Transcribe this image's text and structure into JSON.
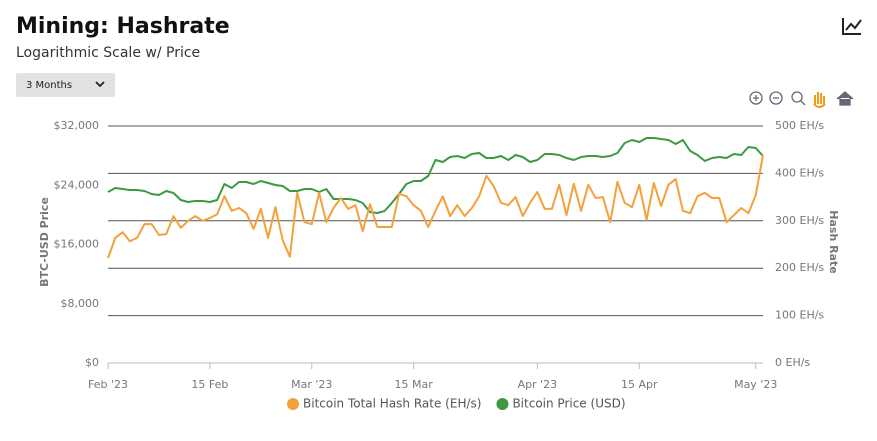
{
  "chart_data": {
    "type": "line",
    "title": "Mining: Hashrate",
    "subtitle": "Logarithmic Scale w/ Price",
    "range_selector": "3 Months",
    "y_label": "BTC-USD Price",
    "y2_label": "Hash Rate",
    "x": [
      0,
      1,
      2,
      3,
      4,
      5,
      6,
      7,
      8,
      9,
      10,
      11,
      12,
      13,
      14,
      15,
      16,
      17,
      18,
      19,
      20,
      21,
      22,
      23,
      24,
      25,
      26,
      27,
      28,
      29,
      30,
      31,
      32,
      33,
      34,
      35,
      36,
      37,
      38,
      39,
      40,
      41,
      42,
      43,
      44,
      45,
      46,
      47,
      48,
      49,
      50,
      51,
      52,
      53,
      54,
      55,
      56,
      57,
      58,
      59,
      60,
      61,
      62,
      63,
      64,
      65,
      66,
      67,
      68,
      69,
      70,
      71,
      72,
      73,
      74,
      75,
      76,
      77,
      78,
      79,
      80,
      81,
      82,
      83,
      84,
      85,
      86,
      87,
      88,
      89,
      90
    ],
    "xlim": [
      0,
      90
    ],
    "xticks": [
      {
        "value": 0,
        "label": "Feb '23"
      },
      {
        "value": 14,
        "label": "15 Feb"
      },
      {
        "value": 28,
        "label": "Mar '23"
      },
      {
        "value": 42,
        "label": "15 Mar"
      },
      {
        "value": 59,
        "label": "Apr '23"
      },
      {
        "value": 73,
        "label": "15 Apr"
      },
      {
        "value": 89,
        "label": "May '23"
      }
    ],
    "ylim": [
      0,
      32000
    ],
    "yticks": [
      {
        "value": 0,
        "label": "$0"
      },
      {
        "value": 8000,
        "label": "$8,000"
      },
      {
        "value": 16000,
        "label": "$16,000"
      },
      {
        "value": 24000,
        "label": "$24,000"
      },
      {
        "value": 32000,
        "label": "$32,000"
      }
    ],
    "y2lim": [
      0,
      500
    ],
    "y2ticks": [
      {
        "value": 0,
        "label": "0 EH/s"
      },
      {
        "value": 100,
        "label": "100 EH/s"
      },
      {
        "value": 200,
        "label": "200 EH/s"
      },
      {
        "value": 300,
        "label": "300 EH/s"
      },
      {
        "value": 400,
        "label": "400 EH/s"
      },
      {
        "value": 500,
        "label": "500 EH/s"
      }
    ],
    "grid": true,
    "legend": "bottom",
    "series": [
      {
        "name": "Bitcoin Total Hash Rate (EH/s)",
        "color": "#f4a13b",
        "axis": "y2",
        "values": [
          221,
          264,
          276,
          257,
          264,
          293,
          293,
          270,
          272,
          310,
          285,
          300,
          310,
          300,
          306,
          314,
          352,
          321,
          327,
          316,
          283,
          325,
          264,
          329,
          259,
          224,
          359,
          297,
          293,
          359,
          297,
          327,
          348,
          325,
          333,
          278,
          335,
          287,
          287,
          287,
          357,
          352,
          333,
          321,
          287,
          321,
          352,
          310,
          333,
          310,
          327,
          352,
          395,
          373,
          338,
          333,
          350,
          310,
          338,
          361,
          325,
          325,
          376,
          312,
          378,
          321,
          376,
          348,
          350,
          297,
          382,
          338,
          329,
          376,
          302,
          380,
          331,
          376,
          388,
          321,
          316,
          352,
          359,
          348,
          348,
          297,
          312,
          327,
          316,
          354,
          439
        ]
      },
      {
        "name": "Bitcoin Price (USD)",
        "color": "#3b9a3f",
        "values": [
          23085,
          23625,
          23490,
          23355,
          23355,
          23220,
          22815,
          22680,
          23220,
          22950,
          22005,
          21735,
          21870,
          21870,
          21735,
          22005,
          24165,
          23625,
          24435,
          24435,
          24165,
          24570,
          24300,
          24030,
          23895,
          23220,
          23220,
          23490,
          23490,
          23085,
          23490,
          22140,
          22140,
          22140,
          22005,
          21600,
          20385,
          20250,
          20520,
          21600,
          22815,
          24165,
          24570,
          24570,
          25245,
          27405,
          27135,
          27810,
          27945,
          27675,
          28215,
          28350,
          27675,
          27675,
          27945,
          27405,
          28080,
          27810,
          27135,
          27405,
          28215,
          28215,
          28080,
          27675,
          27405,
          27810,
          27945,
          27945,
          27810,
          27945,
          28350,
          29700,
          30105,
          29835,
          30375,
          30375,
          30240,
          30105,
          29565,
          30105,
          28620,
          28080,
          27270,
          27675,
          27810,
          27675,
          28215,
          28080,
          29160,
          29025,
          27945
        ]
      }
    ]
  }
}
